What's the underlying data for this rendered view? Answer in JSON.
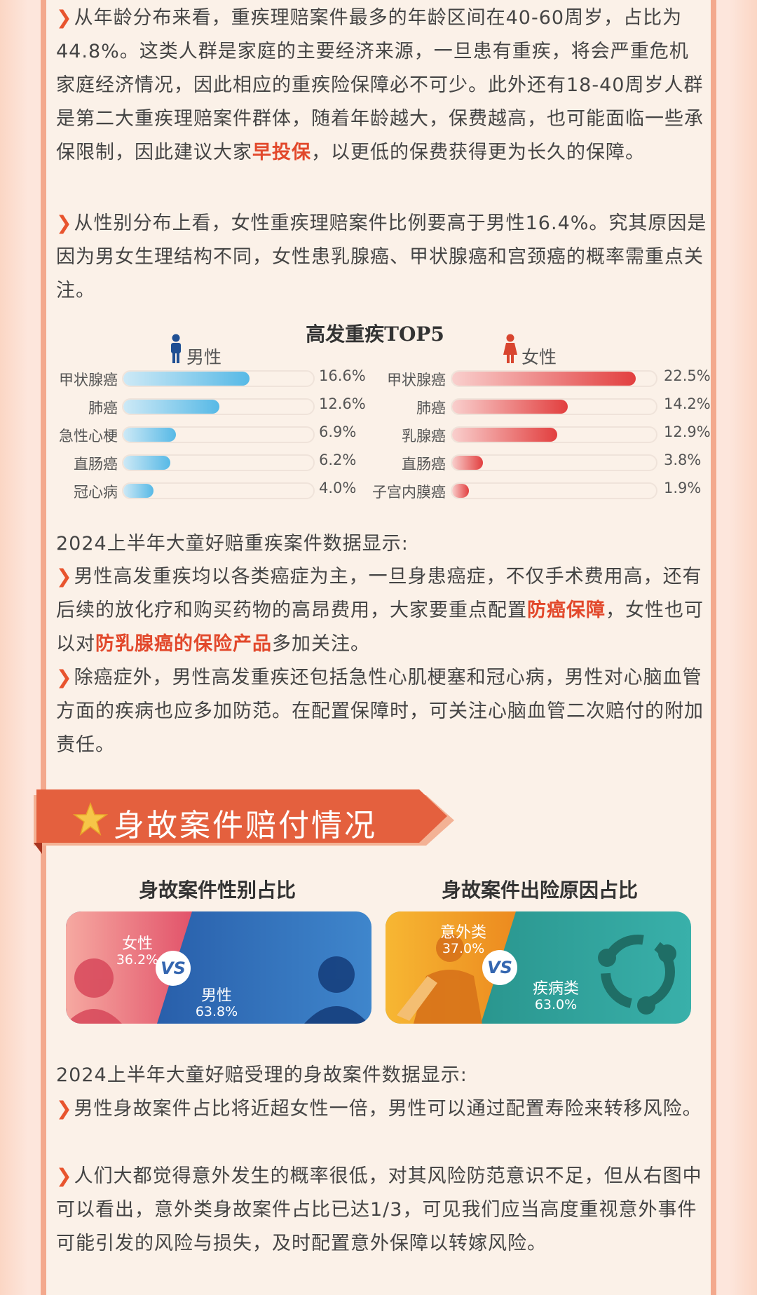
{
  "paragraphs_top": [
    {
      "prefix": "从年龄分布来看，重疾理赔案件最多的年龄区间在40-60周岁，占比为44.8%。这类人群是家庭的主要经济来源，一旦患有重疾，将会严重危机家庭经济情况，因此相应的重疾险保障必不可少。此外还有18-40周岁人群是第二大重疾理赔案件群体，随着年龄越大，保费越高，也可能面临一些承保限制，因此建议大家",
      "highlight": "早投保",
      "suffix": "，以更低的保费获得更为长久的保障。"
    },
    {
      "text": "从性别分布上看，女性重疾理赔案件比例要高于男性16.4%。究其原因是因为男女生理结构不同，女性患乳腺癌、甲状腺癌和宫颈癌的概率需重点关注。"
    }
  ],
  "chart_data": [
    {
      "type": "bar",
      "title": "高发重疾TOP5",
      "series": [
        {
          "name": "男性",
          "categories": [
            "甲状腺癌",
            "肺癌",
            "急性心梗",
            "直肠癌",
            "冠心病"
          ],
          "values": [
            16.6,
            12.6,
            6.9,
            6.2,
            4.0
          ],
          "labels": [
            "16.6%",
            "12.6%",
            "6.9%",
            "6.2%",
            "4.0%"
          ],
          "color": "#57b9e6"
        },
        {
          "name": "女性",
          "categories": [
            "甲状腺癌",
            "肺癌",
            "乳腺癌",
            "直肠癌",
            "子宫内膜癌"
          ],
          "values": [
            22.5,
            14.2,
            12.9,
            3.8,
            1.9
          ],
          "labels": [
            "22.5%",
            "14.2%",
            "12.9%",
            "3.8%",
            "1.9%"
          ],
          "color": "#e23f3f"
        }
      ]
    },
    {
      "type": "pie",
      "title": "身故案件性别占比",
      "categories": [
        "女性",
        "男性"
      ],
      "values": [
        36.2,
        63.8
      ],
      "labels": [
        "36.2%",
        "63.8%"
      ],
      "colors": [
        "#e0566a",
        "#2f6db8"
      ]
    },
    {
      "type": "pie",
      "title": "身故案件出险原因占比",
      "categories": [
        "意外类",
        "疾病类"
      ],
      "values": [
        37.0,
        63.0
      ],
      "labels": [
        "37.0%",
        "63.0%"
      ],
      "colors": [
        "#f0a020",
        "#2a9a92"
      ]
    }
  ],
  "middle": {
    "heading": "2024上半年大童好赔重疾案件数据显示:",
    "p1": {
      "prefix": "男性高发重疾均以各类癌症为主，一旦身患癌症，不仅手术费用高，还有后续的放化疗和购买药物的高昂费用，大家要重点配置",
      "hl1": "防癌保障",
      "mid": "，女性也可以对",
      "hl2": "防乳腺癌的保险产品",
      "suffix": "多加关注。"
    },
    "p2": "除癌症外，男性高发重疾还包括急性心肌梗塞和冠心病，男性对心脑血管方面的疾病也应多加防范。在配置保障时，可关注心脑血管二次赔付的附加责任。"
  },
  "banner": {
    "title": "身故案件赔付情况"
  },
  "vs_label": "VS",
  "bottom": {
    "heading": "2024上半年大童好赔受理的身故案件数据显示:",
    "p1": "男性身故案件占比将近超女性一倍，男性可以通过配置寿险来转移风险。",
    "p2": "人们大都觉得意外发生的概率很低，对其风险防范意识不足，但从右图中可以看出，意外类身故案件占比已达1/3，可见我们应当高度重视意外事件可能引发的风险与损失，及时配置意外保障以转嫁风险。"
  },
  "colors": {
    "accent": "#e8542e",
    "highlight": "#e2482b",
    "male": "#57b9e6",
    "female": "#e23f3f"
  }
}
